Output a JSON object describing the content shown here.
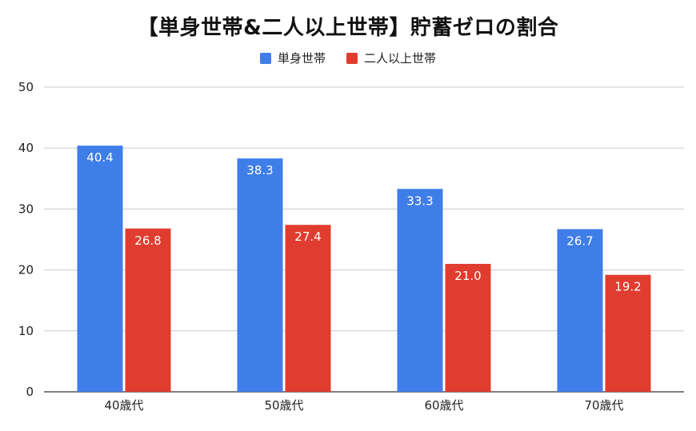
{
  "chart_data": {
    "type": "bar",
    "title": "【単身世帯&二人以上世帯】貯蓄ゼロの割合",
    "categories": [
      "40歳代",
      "50歳代",
      "60歳代",
      "70歳代"
    ],
    "series": [
      {
        "name": "単身世帯",
        "color": "#3f7ee8",
        "values": [
          40.4,
          38.3,
          33.3,
          26.7
        ],
        "labels": [
          "40.4",
          "38.3",
          "33.3",
          "26.7"
        ]
      },
      {
        "name": "二人以上世帯",
        "color": "#e03d30",
        "values": [
          26.8,
          27.4,
          21.0,
          19.2
        ],
        "labels": [
          "26.8",
          "27.4",
          "21.0",
          "19.2"
        ]
      }
    ],
    "ylim": [
      0,
      50
    ],
    "yticks": [
      0,
      10,
      20,
      30,
      40,
      50
    ],
    "xlabel": "",
    "ylabel": "",
    "grid": true,
    "legend_position": "top-center"
  }
}
